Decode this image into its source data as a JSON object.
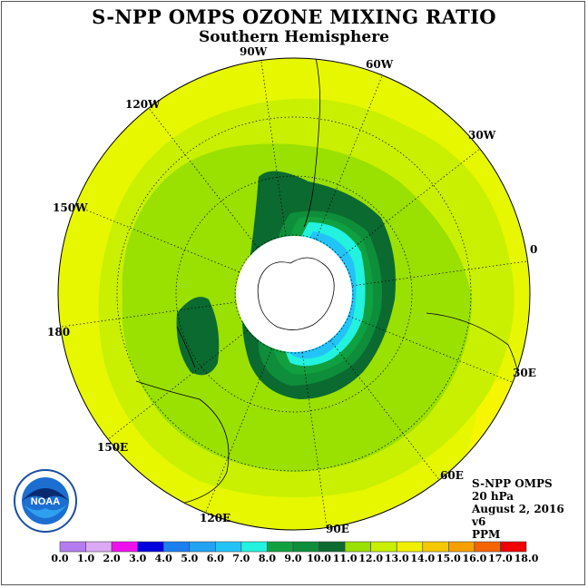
{
  "title": "S-NPP OMPS OZONE MIXING RATIO",
  "subtitle": "Southern Hemisphere",
  "longitude_labels": {
    "w90": "90W",
    "w60": "60W",
    "w30": "30W",
    "e0": "0",
    "e30": "30E",
    "e60": "60E",
    "e90": "90E",
    "e120": "120E",
    "e150": "150E",
    "lon180": "180",
    "w150": "150W",
    "w120": "120W"
  },
  "info": {
    "instrument": "S-NPP OMPS",
    "pressure": "20 hPa",
    "date": "August 2, 2016",
    "version": "v6",
    "units": "PPM"
  },
  "logo": {
    "text": "NOAA",
    "icon": "noaa-logo-icon"
  },
  "colorbar": {
    "labels": [
      "0.0",
      "1.0",
      "2.0",
      "3.0",
      "4.0",
      "5.0",
      "6.0",
      "7.0",
      "8.0",
      "9.0",
      "10.0",
      "11.0",
      "12.0",
      "13.0",
      "14.0",
      "15.0",
      "16.0",
      "17.0",
      "18.0"
    ],
    "colors": [
      "#b57cf0",
      "#dcaaf5",
      "#ee11ee",
      "#0000dd",
      "#1c7ff0",
      "#22a2f2",
      "#22c4f8",
      "#22f2de",
      "#10a040",
      "#0e8e3a",
      "#0b6a30",
      "#9ae000",
      "#c8f000",
      "#f0f000",
      "#f6c800",
      "#f6a000",
      "#f66400",
      "#f00000",
      "#8a5a42"
    ]
  },
  "map_colors": {
    "outer": "#e6f700",
    "mid": "#c8f000",
    "inner": "#9ae000",
    "dark_green": "#0b6a30",
    "green": "#10a040",
    "mid_green": "#0e8e3a",
    "cyan": "#22f2de",
    "light_blue": "#22c4f8",
    "yellow": "#f6f600",
    "hole": "#ffffff"
  }
}
